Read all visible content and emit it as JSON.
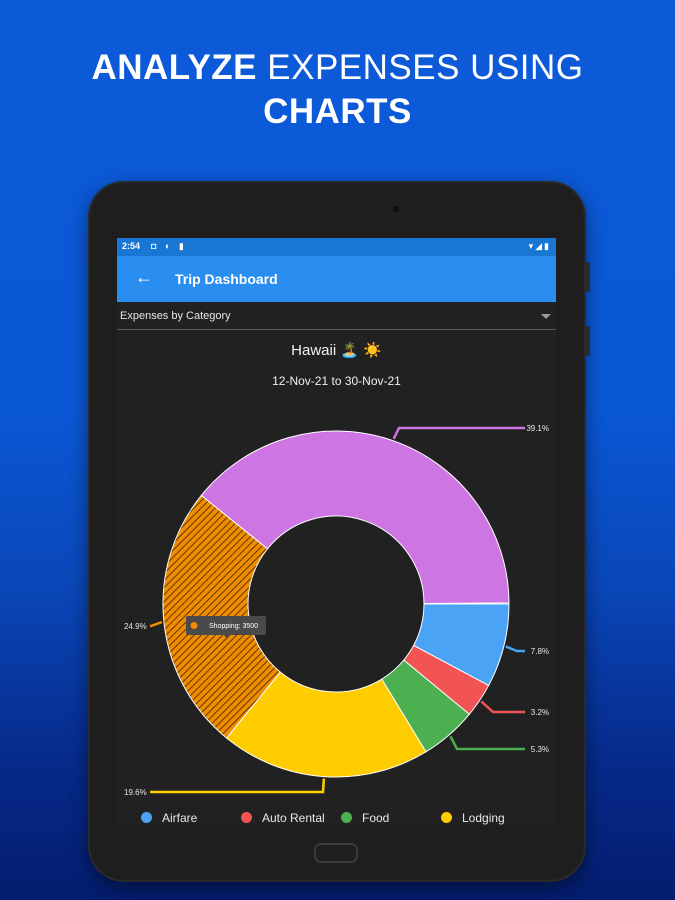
{
  "headline": {
    "bold_1": "ANALYZE",
    "light_1": "EXPENSES USING",
    "bold_2": "CHARTS"
  },
  "statusbar": {
    "time": "2:54",
    "left_icons": "◘ ◐ ▮",
    "right_icons": "▾◢▮"
  },
  "appbar": {
    "back_icon": "←",
    "title": "Trip Dashboard"
  },
  "dropdown": {
    "selected": "Expenses by Category"
  },
  "trip": {
    "title": "Hawaii 🏝️ ☀️",
    "dates": "12-Nov-21 to 30-Nov-21"
  },
  "tooltip": {
    "text": "Shopping: 3500"
  },
  "chart_data": {
    "type": "pie",
    "donut": true,
    "slices": [
      {
        "label": "Airfare",
        "percent": 7.8,
        "color": "#4aa3f4"
      },
      {
        "label": "Auto Rental",
        "percent": 3.2,
        "color": "#f25454"
      },
      {
        "label": "Food",
        "percent": 5.3,
        "color": "#4caf50"
      },
      {
        "label": "Lodging",
        "percent": 19.6,
        "color": "#ffcc00"
      },
      {
        "label": "Shopping",
        "percent": 24.9,
        "color": "#f08c00",
        "value": 3500
      },
      {
        "label": "",
        "percent": 39.1,
        "color": "#cc75e3"
      }
    ],
    "data_labels": [
      "7.8%",
      "3.2%",
      "5.3%",
      "19.6%",
      "24.9%",
      "39.1%"
    ],
    "legend": [
      {
        "label": "Airfare",
        "color": "#4aa3f4"
      },
      {
        "label": "Auto Rental",
        "color": "#f25454"
      },
      {
        "label": "Food",
        "color": "#4caf50"
      },
      {
        "label": "Lodging",
        "color": "#ffcc00"
      }
    ]
  }
}
